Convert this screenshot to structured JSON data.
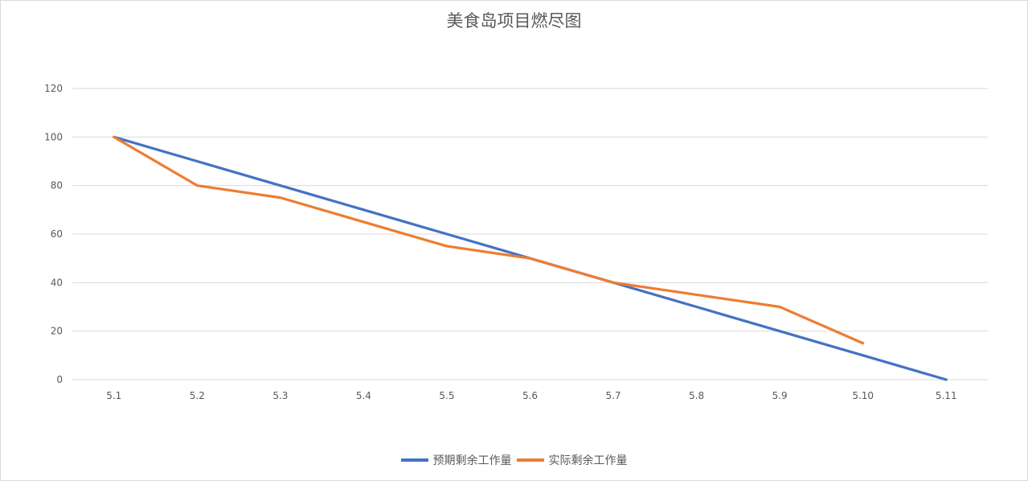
{
  "chart_data": {
    "type": "line",
    "title": "美食岛项目燃尽图",
    "categories": [
      "5.1",
      "5.2",
      "5.3",
      "5.4",
      "5.5",
      "5.6",
      "5.7",
      "5.8",
      "5.9",
      "5.10",
      "5.11"
    ],
    "ylim": [
      0,
      120
    ],
    "yticks": [
      0,
      20,
      40,
      60,
      80,
      100,
      120
    ],
    "grid": true,
    "legend_position": "bottom",
    "series": [
      {
        "name": "预期剩余工作量",
        "color": "#4472c4",
        "values": [
          100,
          90,
          80,
          70,
          60,
          50,
          40,
          30,
          20,
          10,
          0
        ]
      },
      {
        "name": "实际剩余工作量",
        "color": "#ed7d31",
        "values": [
          100,
          80,
          75,
          65,
          55,
          50,
          40,
          35,
          30,
          15,
          null
        ]
      }
    ]
  }
}
